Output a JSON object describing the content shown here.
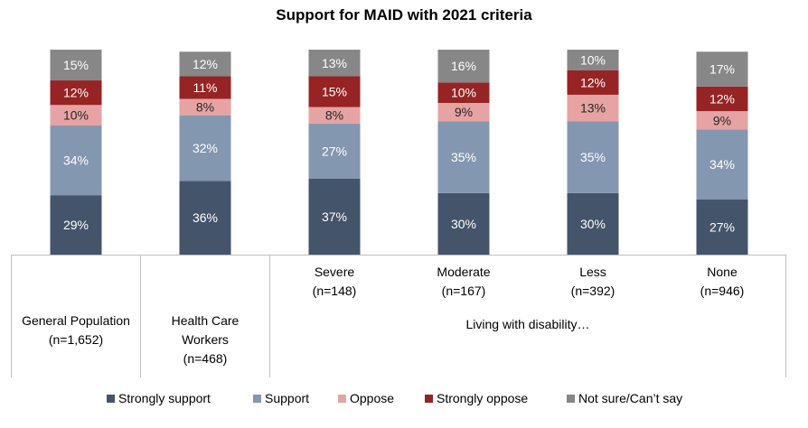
{
  "chart_data": {
    "type": "bar",
    "stacked": true,
    "title": "Support for MAID with 2021 criteria",
    "categories": [
      {
        "label_lines": [
          "General Population",
          "(n=1,652)"
        ]
      },
      {
        "label_lines": [
          "Health Care",
          "Workers",
          "(n=468)"
        ]
      },
      {
        "label_lines": [
          "Severe",
          "(n=148)"
        ]
      },
      {
        "label_lines": [
          "Moderate",
          "(n=167)"
        ]
      },
      {
        "label_lines": [
          "Less",
          "(n=392)"
        ]
      },
      {
        "label_lines": [
          "None",
          "(n=946)"
        ]
      }
    ],
    "group_label": "Living with disability…",
    "series": [
      {
        "name": "Strongly support",
        "color": "#44546a",
        "text_color": "#ffffff",
        "values": [
          29,
          36,
          37,
          30,
          30,
          27
        ]
      },
      {
        "name": "Support",
        "color": "#8497b0",
        "text_color": "#ffffff",
        "values": [
          34,
          32,
          27,
          35,
          35,
          34
        ]
      },
      {
        "name": "Oppose",
        "color": "#e6a3a3",
        "text_color": "#262626",
        "values": [
          10,
          8,
          8,
          9,
          13,
          9
        ]
      },
      {
        "name": "Strongly oppose",
        "color": "#962424",
        "text_color": "#ffffff",
        "values": [
          12,
          11,
          15,
          10,
          12,
          12
        ]
      },
      {
        "name": "Not sure/Can’t say",
        "color": "#878787",
        "text_color": "#ffffff",
        "values": [
          15,
          12,
          13,
          16,
          10,
          17
        ]
      }
    ],
    "value_suffix": "%",
    "ylim": [
      0,
      100
    ],
    "legend_position": "bottom"
  }
}
